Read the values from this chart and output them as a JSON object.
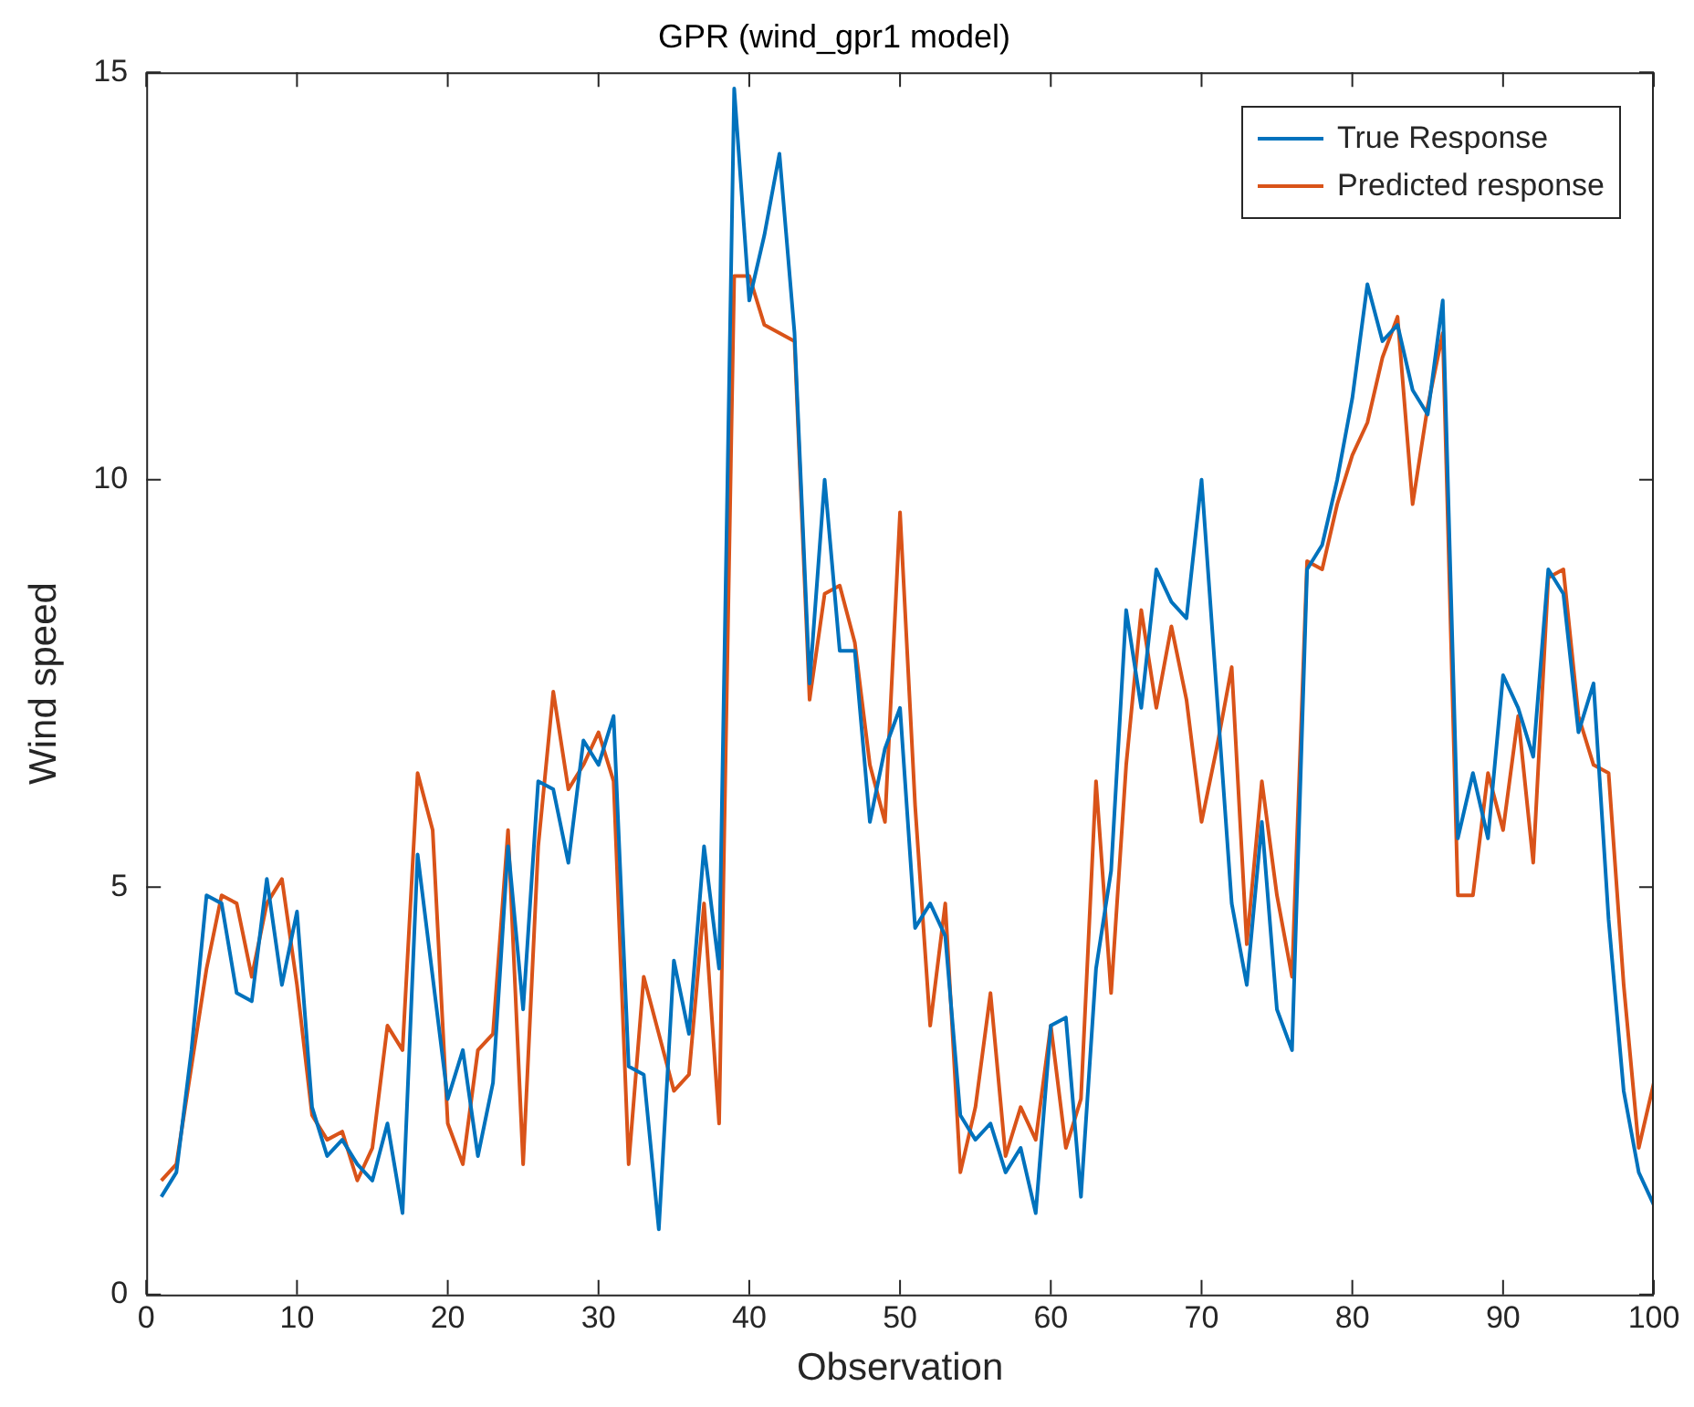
{
  "chart_data": {
    "type": "line",
    "title": "GPR (wind_gpr1 model)",
    "xlabel": "Observation",
    "ylabel": "Wind speed",
    "x": [
      1,
      2,
      3,
      4,
      5,
      6,
      7,
      8,
      9,
      10,
      11,
      12,
      13,
      14,
      15,
      16,
      17,
      18,
      19,
      20,
      21,
      22,
      23,
      24,
      25,
      26,
      27,
      28,
      29,
      30,
      31,
      32,
      33,
      34,
      35,
      36,
      37,
      38,
      39,
      40,
      41,
      42,
      43,
      44,
      45,
      46,
      47,
      48,
      49,
      50,
      51,
      52,
      53,
      54,
      55,
      56,
      57,
      58,
      59,
      60,
      61,
      62,
      63,
      64,
      65,
      66,
      67,
      68,
      69,
      70,
      71,
      72,
      73,
      74,
      75,
      76,
      77,
      78,
      79,
      80,
      81,
      82,
      83,
      84,
      85,
      86,
      87,
      88,
      89,
      90,
      91,
      92,
      93,
      94,
      95,
      96,
      97,
      98,
      99,
      100
    ],
    "series": [
      {
        "name": "True Response",
        "color": "#0072bd",
        "values": [
          1.2,
          1.5,
          3.0,
          4.9,
          4.8,
          3.7,
          3.6,
          5.1,
          3.8,
          4.7,
          2.3,
          1.7,
          1.9,
          1.6,
          1.4,
          2.1,
          1.0,
          5.4,
          3.9,
          2.4,
          3.0,
          1.7,
          2.6,
          5.5,
          3.5,
          6.3,
          6.2,
          5.3,
          6.8,
          6.5,
          7.1,
          2.8,
          2.7,
          0.8,
          4.1,
          3.2,
          5.5,
          4.0,
          14.8,
          12.2,
          13.0,
          14.0,
          11.8,
          7.5,
          10.0,
          7.9,
          7.9,
          5.8,
          6.7,
          7.2,
          4.5,
          4.8,
          4.4,
          2.2,
          1.9,
          2.1,
          1.5,
          1.8,
          1.0,
          3.3,
          3.4,
          1.2,
          4.0,
          5.2,
          8.4,
          7.2,
          8.9,
          8.5,
          8.3,
          10.0,
          7.4,
          4.8,
          3.8,
          5.8,
          3.5,
          3.0,
          8.9,
          9.2,
          10.0,
          11.0,
          12.4,
          11.7,
          11.9,
          11.1,
          10.8,
          12.2,
          5.6,
          6.4,
          5.6,
          7.6,
          7.2,
          6.6,
          8.9,
          8.6,
          6.9,
          7.5,
          4.6,
          2.5,
          1.5,
          1.1
        ]
      },
      {
        "name": "Predicted response",
        "color": "#d95319",
        "values": [
          1.4,
          1.6,
          2.8,
          4.0,
          4.9,
          4.8,
          3.9,
          4.8,
          5.1,
          3.8,
          2.2,
          1.9,
          2.0,
          1.4,
          1.8,
          3.3,
          3.0,
          6.4,
          5.7,
          2.1,
          1.6,
          3.0,
          3.2,
          5.7,
          1.6,
          5.5,
          7.4,
          6.2,
          6.5,
          6.9,
          6.3,
          1.6,
          3.9,
          3.2,
          2.5,
          2.7,
          4.8,
          2.1,
          12.5,
          12.5,
          11.9,
          11.8,
          11.7,
          7.3,
          8.6,
          8.7,
          8.0,
          6.5,
          5.8,
          9.6,
          6.0,
          3.3,
          4.8,
          1.5,
          2.3,
          3.7,
          1.7,
          2.3,
          1.9,
          3.3,
          1.8,
          2.4,
          6.3,
          3.7,
          6.5,
          8.4,
          7.2,
          8.2,
          7.3,
          5.8,
          6.7,
          7.7,
          4.3,
          6.3,
          4.9,
          3.9,
          9.0,
          8.9,
          9.7,
          10.3,
          10.7,
          11.5,
          12.0,
          9.7,
          10.9,
          11.8,
          4.9,
          4.9,
          6.4,
          5.7,
          7.1,
          5.3,
          8.8,
          8.9,
          7.1,
          6.5,
          6.4,
          3.8,
          1.8,
          2.6
        ]
      }
    ],
    "xlim": [
      0,
      100
    ],
    "xticks": [
      0,
      10,
      20,
      30,
      40,
      50,
      60,
      70,
      80,
      90,
      100
    ],
    "ylim": [
      0,
      15
    ],
    "yticks": [
      0,
      5,
      10,
      15
    ],
    "grid": false,
    "legend": "top right",
    "marker": "none",
    "line_style": "solid"
  }
}
